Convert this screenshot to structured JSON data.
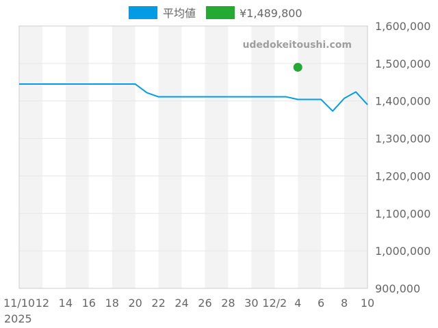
{
  "watermark": "udedokeitoushi.com",
  "chart_data": {
    "type": "line",
    "x_ticks": [
      "11/10",
      "12",
      "14",
      "16",
      "18",
      "20",
      "22",
      "24",
      "26",
      "28",
      "30",
      "12/2",
      "4",
      "6",
      "8",
      "10"
    ],
    "x_year_label": "2025",
    "y_ticks": [
      "900,000",
      "1,000,000",
      "1,100,000",
      "1,200,000",
      "1,300,000",
      "1,400,000",
      "1,500,000",
      "1,600,000"
    ],
    "ylim": [
      900000,
      1600000
    ],
    "xlim": [
      "2025-11-10",
      "2025-12-10"
    ],
    "grid": true,
    "legend_position": "top",
    "series": [
      {
        "name": "平均値",
        "type": "line",
        "color": "#039be5",
        "points": [
          [
            "2025-11-10",
            1445000
          ],
          [
            "2025-11-11",
            1445000
          ],
          [
            "2025-11-12",
            1445000
          ],
          [
            "2025-11-13",
            1445000
          ],
          [
            "2025-11-14",
            1445000
          ],
          [
            "2025-11-15",
            1445000
          ],
          [
            "2025-11-16",
            1445000
          ],
          [
            "2025-11-17",
            1445000
          ],
          [
            "2025-11-18",
            1445000
          ],
          [
            "2025-11-19",
            1445000
          ],
          [
            "2025-11-20",
            1445000
          ],
          [
            "2025-11-21",
            1422000
          ],
          [
            "2025-11-22",
            1411000
          ],
          [
            "2025-11-23",
            1411000
          ],
          [
            "2025-11-24",
            1411000
          ],
          [
            "2025-11-25",
            1411000
          ],
          [
            "2025-11-26",
            1411000
          ],
          [
            "2025-11-27",
            1411000
          ],
          [
            "2025-11-28",
            1411000
          ],
          [
            "2025-11-29",
            1411000
          ],
          [
            "2025-11-30",
            1411000
          ],
          [
            "2025-12-01",
            1411000
          ],
          [
            "2025-12-02",
            1411000
          ],
          [
            "2025-12-03",
            1411000
          ],
          [
            "2025-12-04",
            1404000
          ],
          [
            "2025-12-05",
            1404000
          ],
          [
            "2025-12-06",
            1404000
          ],
          [
            "2025-12-07",
            1373000
          ],
          [
            "2025-12-08",
            1407000
          ],
          [
            "2025-12-09",
            1424000
          ],
          [
            "2025-12-10",
            1390000
          ]
        ]
      },
      {
        "name": "¥1,489,800",
        "type": "scatter",
        "color": "#22aa33",
        "points": [
          [
            "2025-12-04",
            1489800
          ]
        ]
      }
    ]
  }
}
